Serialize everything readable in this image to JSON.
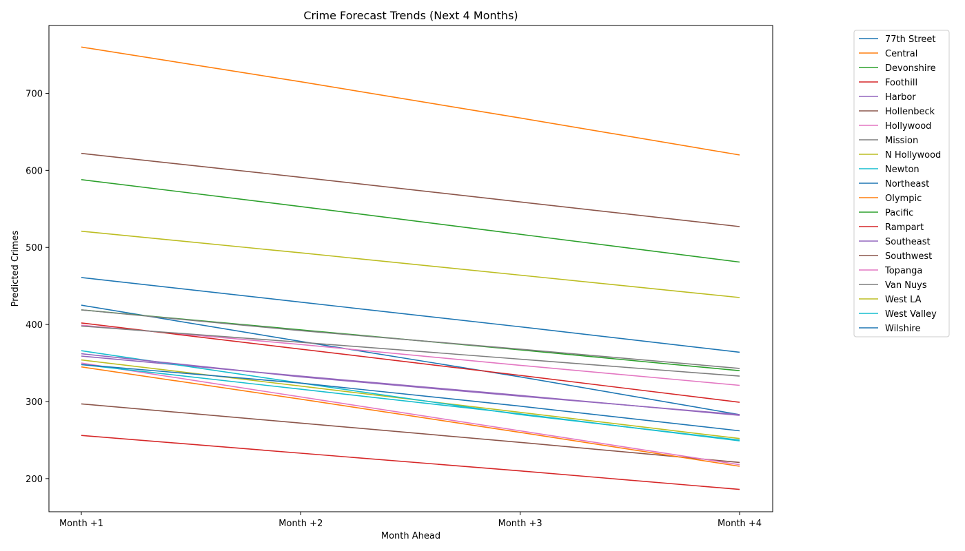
{
  "chart_data": {
    "type": "line",
    "title": "Crime Forecast Trends (Next 4 Months)",
    "xlabel": "Month Ahead",
    "ylabel": "Predicted Crimes",
    "categories": [
      "Month +1",
      "Month +2",
      "Month +3",
      "Month +4"
    ],
    "ylim": [
      157,
      788
    ],
    "yticks": [
      200,
      300,
      400,
      500,
      600,
      700
    ],
    "legend_position": "outside-right",
    "series": [
      {
        "name": "77th Street",
        "color": "#1f77b4",
        "values": [
          425,
          378,
          332,
          283
        ]
      },
      {
        "name": "Central",
        "color": "#ff7f0e",
        "values": [
          760,
          715,
          668,
          620
        ]
      },
      {
        "name": "Devonshire",
        "color": "#2ca02c",
        "values": [
          419,
          393,
          367,
          340
        ]
      },
      {
        "name": "Foothill",
        "color": "#d62728",
        "values": [
          256,
          233,
          210,
          186
        ]
      },
      {
        "name": "Harbor",
        "color": "#9467bd",
        "values": [
          359,
          333,
          308,
          282
        ]
      },
      {
        "name": "Hollenbeck",
        "color": "#8c564b",
        "values": [
          297,
          272,
          247,
          221
        ]
      },
      {
        "name": "Hollywood",
        "color": "#e377c2",
        "values": [
          399,
          374,
          347,
          321
        ]
      },
      {
        "name": "Mission",
        "color": "#7f7f7f",
        "values": [
          419,
          392,
          368,
          343
        ]
      },
      {
        "name": "N Hollywood",
        "color": "#bcbd22",
        "values": [
          354,
          320,
          286,
          252
        ]
      },
      {
        "name": "Newton",
        "color": "#17becf",
        "values": [
          366,
          324,
          283,
          250
        ]
      },
      {
        "name": "Northeast",
        "color": "#1f77b4",
        "values": [
          461,
          429,
          397,
          364
        ]
      },
      {
        "name": "Olympic",
        "color": "#ff7f0e",
        "values": [
          345,
          303,
          260,
          216
        ]
      },
      {
        "name": "Pacific",
        "color": "#2ca02c",
        "values": [
          588,
          553,
          517,
          481
        ]
      },
      {
        "name": "Rampart",
        "color": "#d62728",
        "values": [
          402,
          368,
          334,
          299
        ]
      },
      {
        "name": "Southeast",
        "color": "#9467bd",
        "values": [
          362,
          332,
          307,
          283
        ]
      },
      {
        "name": "Southwest",
        "color": "#8c564b",
        "values": [
          622,
          591,
          559,
          527
        ]
      },
      {
        "name": "Topanga",
        "color": "#e377c2",
        "values": [
          350,
          306,
          262,
          218
        ]
      },
      {
        "name": "Van Nuys",
        "color": "#7f7f7f",
        "values": [
          398,
          377,
          355,
          333
        ]
      },
      {
        "name": "West LA",
        "color": "#bcbd22",
        "values": [
          521,
          493,
          464,
          435
        ]
      },
      {
        "name": "West Valley",
        "color": "#17becf",
        "values": [
          348,
          316,
          284,
          249
        ]
      },
      {
        "name": "Wilshire",
        "color": "#1f77b4",
        "values": [
          348,
          324,
          294,
          262
        ]
      }
    ]
  }
}
